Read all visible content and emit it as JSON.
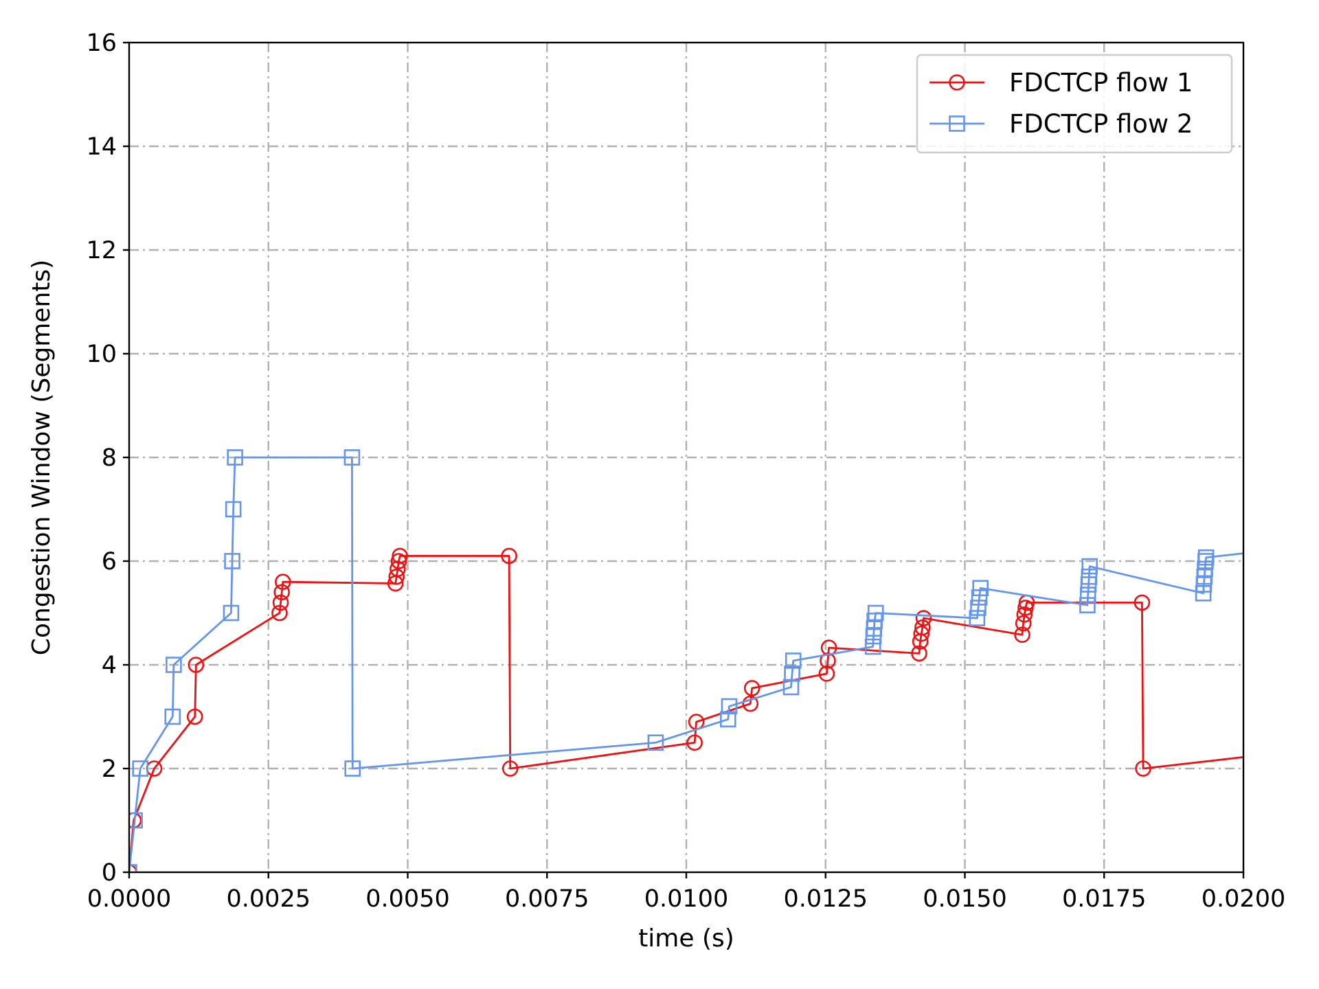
{
  "chart_data": {
    "type": "line",
    "title": "",
    "xlabel": "time (s)",
    "ylabel": "Congestion Window (Segments)",
    "xlim": [
      0.0,
      0.02
    ],
    "ylim": [
      0,
      16
    ],
    "xticks": [
      0.0,
      0.0025,
      0.005,
      0.0075,
      0.01,
      0.0125,
      0.015,
      0.0175,
      0.02
    ],
    "xtick_labels": [
      "0.0000",
      "0.0025",
      "0.0050",
      "0.0075",
      "0.0100",
      "0.0125",
      "0.0150",
      "0.0175",
      "0.0200"
    ],
    "yticks": [
      0,
      2,
      4,
      6,
      8,
      10,
      12,
      14,
      16
    ],
    "ytick_labels": [
      "0",
      "2",
      "4",
      "6",
      "8",
      "10",
      "12",
      "14",
      "16"
    ],
    "grid": true,
    "legend_position": "top-right",
    "series": [
      {
        "name": "FDCTCP flow 1",
        "color": "#ee1111",
        "marker": "circle",
        "points": [
          [
            0.0,
            0
          ],
          [
            8e-05,
            1
          ],
          [
            0.00045,
            2
          ],
          [
            0.00118,
            3
          ],
          [
            0.0012,
            4
          ],
          [
            0.0027,
            5
          ],
          [
            0.00272,
            5.2
          ],
          [
            0.00274,
            5.4
          ],
          [
            0.00276,
            5.6
          ],
          [
            0.00478,
            5.57
          ],
          [
            0.0048,
            5.7
          ],
          [
            0.00482,
            5.85
          ],
          [
            0.00484,
            6.0
          ],
          [
            0.00486,
            6.1
          ],
          [
            0.00682,
            6.1
          ],
          [
            0.00684,
            2
          ],
          [
            0.01015,
            2.5
          ],
          [
            0.01018,
            2.9
          ],
          [
            0.01115,
            3.25
          ],
          [
            0.01118,
            3.55
          ],
          [
            0.01252,
            3.83
          ],
          [
            0.01254,
            4.08
          ],
          [
            0.01256,
            4.33
          ],
          [
            0.01418,
            4.22
          ],
          [
            0.0142,
            4.45
          ],
          [
            0.01422,
            4.6
          ],
          [
            0.01424,
            4.72
          ],
          [
            0.01426,
            4.9
          ],
          [
            0.01603,
            4.58
          ],
          [
            0.01605,
            4.8
          ],
          [
            0.01607,
            4.97
          ],
          [
            0.01609,
            5.1
          ],
          [
            0.01611,
            5.2
          ],
          [
            0.01818,
            5.2
          ],
          [
            0.0182,
            2
          ],
          [
            0.02,
            2.22
          ]
        ]
      },
      {
        "name": "FDCTCP flow 2",
        "color": "#6495ed",
        "marker": "square",
        "points": [
          [
            0.0,
            0
          ],
          [
            0.0001,
            1
          ],
          [
            0.0002,
            2
          ],
          [
            0.00078,
            3
          ],
          [
            0.0008,
            4
          ],
          [
            0.00183,
            5
          ],
          [
            0.00185,
            6
          ],
          [
            0.00187,
            7
          ],
          [
            0.0019,
            8
          ],
          [
            0.004,
            8
          ],
          [
            0.00401,
            2
          ],
          [
            0.00945,
            2.5
          ],
          [
            0.01075,
            2.95
          ],
          [
            0.01077,
            3.2
          ],
          [
            0.01188,
            3.57
          ],
          [
            0.0119,
            3.83
          ],
          [
            0.01192,
            4.08
          ],
          [
            0.01335,
            4.35
          ],
          [
            0.01336,
            4.55
          ],
          [
            0.01337,
            4.7
          ],
          [
            0.01338,
            4.85
          ],
          [
            0.0134,
            5.0
          ],
          [
            0.01522,
            4.9
          ],
          [
            0.01524,
            5.1
          ],
          [
            0.01526,
            5.3
          ],
          [
            0.01528,
            5.48
          ],
          [
            0.0172,
            5.15
          ],
          [
            0.01721,
            5.35
          ],
          [
            0.01722,
            5.55
          ],
          [
            0.01723,
            5.7
          ],
          [
            0.01724,
            5.9
          ],
          [
            0.01928,
            5.38
          ],
          [
            0.01929,
            5.55
          ],
          [
            0.0193,
            5.7
          ],
          [
            0.01931,
            5.85
          ],
          [
            0.01932,
            6.0
          ],
          [
            0.01933,
            6.07
          ],
          [
            0.02,
            6.15
          ]
        ]
      }
    ]
  }
}
